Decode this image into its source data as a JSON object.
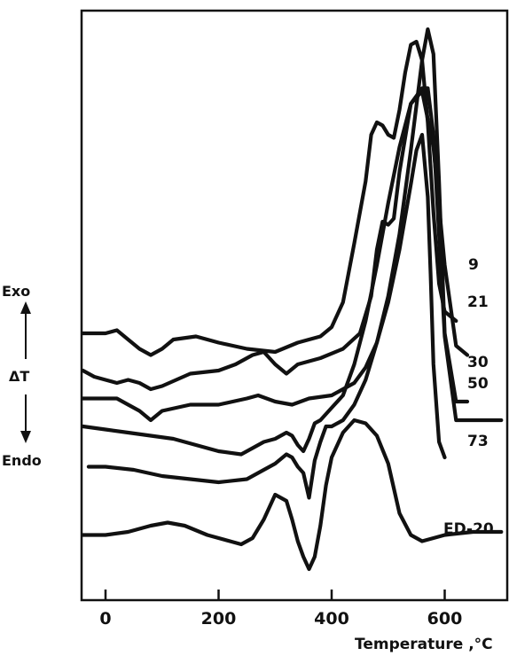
{
  "chart_data": {
    "type": "line",
    "xlabel": "Temperature ,°C",
    "ylabel": "ΔT",
    "ylabel_top": "Exo",
    "ylabel_bottom": "Endo",
    "xlim": [
      -60,
      700
    ],
    "xticks": [
      0,
      200,
      400,
      600
    ],
    "yticks": "none",
    "grid": false,
    "legend": "labels at right end of each curve",
    "series": [
      {
        "name": "9",
        "x": [
          -40,
          0,
          20,
          40,
          60,
          80,
          100,
          120,
          160,
          200,
          250,
          300,
          340,
          380,
          400,
          420,
          440,
          460,
          470,
          480,
          490,
          500,
          510,
          520,
          530,
          540,
          550,
          560,
          570,
          580,
          590,
          600,
          620
        ],
        "y": [
          8.6,
          8.6,
          8.7,
          8.4,
          8.1,
          7.9,
          8.1,
          8.4,
          8.5,
          8.3,
          8.1,
          8.0,
          8.3,
          8.5,
          8.8,
          9.6,
          11.5,
          13.5,
          15.0,
          15.4,
          15.3,
          15.0,
          14.9,
          15.8,
          17.0,
          17.9,
          18.0,
          17.4,
          15.4,
          12.5,
          10.2,
          9.3,
          9.0
        ]
      },
      {
        "name": "21",
        "x": [
          -40,
          -20,
          0,
          20,
          40,
          60,
          80,
          100,
          150,
          200,
          230,
          260,
          280,
          300,
          320,
          340,
          380,
          420,
          450,
          470,
          480,
          490,
          500,
          510,
          520,
          540,
          560,
          580,
          600,
          620,
          640
        ],
        "y": [
          7.4,
          7.2,
          7.1,
          7.0,
          7.1,
          7.0,
          6.8,
          6.9,
          7.3,
          7.4,
          7.6,
          7.9,
          8.0,
          7.6,
          7.3,
          7.6,
          7.8,
          8.1,
          8.6,
          9.8,
          11.3,
          12.2,
          12.1,
          12.3,
          13.8,
          16.0,
          16.4,
          14.6,
          10.8,
          8.2,
          7.9
        ]
      },
      {
        "name": "30",
        "x": [
          -40,
          0,
          20,
          40,
          60,
          80,
          100,
          150,
          200,
          250,
          270,
          300,
          330,
          360,
          400,
          420,
          440,
          460,
          480,
          500,
          520,
          540,
          560,
          570,
          580,
          590,
          600,
          620,
          640
        ],
        "y": [
          6.5,
          6.5,
          6.5,
          6.3,
          6.1,
          5.8,
          6.1,
          6.3,
          6.3,
          6.5,
          6.6,
          6.4,
          6.3,
          6.5,
          6.6,
          6.8,
          7.0,
          7.5,
          8.3,
          9.8,
          11.8,
          14.5,
          17.4,
          18.4,
          17.6,
          13.5,
          8.6,
          6.4,
          6.4
        ]
      },
      {
        "name": "50",
        "x": [
          -40,
          0,
          40,
          80,
          120,
          160,
          200,
          240,
          260,
          280,
          300,
          320,
          330,
          340,
          350,
          360,
          370,
          380,
          400,
          420,
          440,
          460,
          480,
          500,
          520,
          540,
          560,
          570,
          580,
          600,
          620,
          640,
          700
        ],
        "y": [
          5.6,
          5.5,
          5.4,
          5.3,
          5.2,
          5.0,
          4.8,
          4.7,
          4.9,
          5.1,
          5.2,
          5.4,
          5.3,
          5.0,
          4.8,
          5.2,
          5.7,
          5.8,
          6.2,
          6.6,
          7.6,
          9.0,
          10.8,
          12.8,
          14.6,
          16.0,
          16.5,
          16.5,
          15.0,
          8.5,
          5.8,
          5.8,
          5.8
        ]
      },
      {
        "name": "73",
        "x": [
          -30,
          0,
          50,
          100,
          150,
          200,
          250,
          280,
          300,
          320,
          330,
          340,
          350,
          360,
          370,
          380,
          390,
          400,
          420,
          440,
          460,
          480,
          500,
          520,
          540,
          550,
          560,
          570,
          575,
          580,
          590,
          600
        ],
        "y": [
          4.3,
          4.3,
          4.2,
          4.0,
          3.9,
          3.8,
          3.9,
          4.2,
          4.4,
          4.7,
          4.6,
          4.3,
          4.1,
          3.3,
          4.5,
          5.1,
          5.6,
          5.6,
          5.8,
          6.3,
          7.1,
          8.3,
          9.6,
          11.3,
          13.4,
          14.5,
          15.0,
          13.0,
          10.5,
          7.6,
          5.1,
          4.6
        ]
      },
      {
        "name": "ED-20",
        "x": [
          -40,
          0,
          40,
          80,
          110,
          140,
          180,
          220,
          240,
          260,
          280,
          300,
          320,
          330,
          340,
          350,
          360,
          370,
          380,
          390,
          400,
          420,
          440,
          460,
          480,
          500,
          520,
          540,
          560,
          580,
          600,
          650,
          700
        ],
        "y": [
          2.1,
          2.1,
          2.2,
          2.4,
          2.5,
          2.4,
          2.1,
          1.9,
          1.8,
          2.0,
          2.6,
          3.4,
          3.2,
          2.6,
          1.9,
          1.4,
          1.0,
          1.4,
          2.4,
          3.7,
          4.6,
          5.4,
          5.8,
          5.7,
          5.3,
          4.4,
          2.8,
          2.1,
          1.9,
          2.0,
          2.1,
          2.2,
          2.2
        ]
      }
    ]
  }
}
